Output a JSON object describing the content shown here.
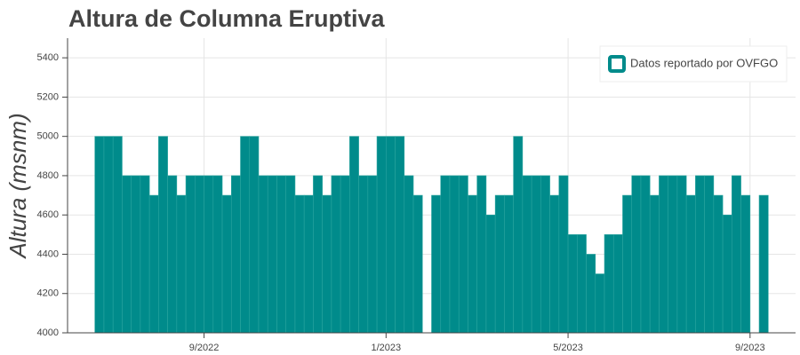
{
  "chart_data": {
    "type": "bar",
    "title": "Altura de Columna Eruptiva",
    "y_label": "Altura (msnm)",
    "color": "#008b8b",
    "grid": true,
    "legend_position": "top-right",
    "series": [
      {
        "name": "Datos reportado por OVFGO",
        "color": "#008b8b",
        "values": [
          5000,
          5000,
          5000,
          4800,
          4800,
          4800,
          4700,
          5000,
          4800,
          4700,
          4800,
          4800,
          4800,
          4800,
          4700,
          4800,
          5000,
          5000,
          4800,
          4800,
          4800,
          4800,
          4700,
          4700,
          4800,
          4700,
          4800,
          4800,
          5000,
          4800,
          4800,
          5000,
          5000,
          5000,
          4800,
          4700,
          null,
          4700,
          4800,
          4800,
          4800,
          4700,
          4800,
          4600,
          4700,
          4700,
          5000,
          4800,
          4800,
          4800,
          4700,
          4800,
          4500,
          4500,
          4400,
          4300,
          4500,
          4500,
          4700,
          4800,
          4800,
          4700,
          4800,
          4800,
          4800,
          4700,
          4800,
          4800,
          4700,
          4600,
          4800,
          4700,
          null,
          4700
        ]
      }
    ],
    "x": [
      6.7,
      6.9,
      7.1,
      7.3,
      7.5,
      7.7,
      7.9,
      8.1,
      8.3,
      8.5,
      8.7,
      8.9,
      9.1,
      9.3,
      9.5,
      9.7,
      9.9,
      10.1,
      10.3,
      10.5,
      10.7,
      10.9,
      11.1,
      11.3,
      11.5,
      11.7,
      11.9,
      12.1,
      12.3,
      12.5,
      12.7,
      12.9,
      13.1,
      13.3,
      13.5,
      13.7,
      13.9,
      14.1,
      14.3,
      14.5,
      14.7,
      14.9,
      15.1,
      15.3,
      15.5,
      15.7,
      15.9,
      16.1,
      16.3,
      16.5,
      16.7,
      16.9,
      17.1,
      17.3,
      17.5,
      17.7,
      17.9,
      18.1,
      18.3,
      18.5,
      18.7,
      18.9,
      19.1,
      19.3,
      19.5,
      19.7,
      19.9,
      20.1,
      20.3,
      20.5,
      20.7,
      20.9,
      21.1,
      21.3
    ],
    "xlim": [
      6,
      22
    ],
    "xticks": [
      {
        "value": 9,
        "label": "9/2022"
      },
      {
        "value": 13,
        "label": "1/2023"
      },
      {
        "value": 17,
        "label": "5/2023"
      },
      {
        "value": 21,
        "label": "9/2023"
      }
    ],
    "ylim": [
      4000,
      5500
    ],
    "yticks": [
      4000,
      4200,
      4400,
      4600,
      4800,
      5000,
      5200,
      5400
    ]
  }
}
